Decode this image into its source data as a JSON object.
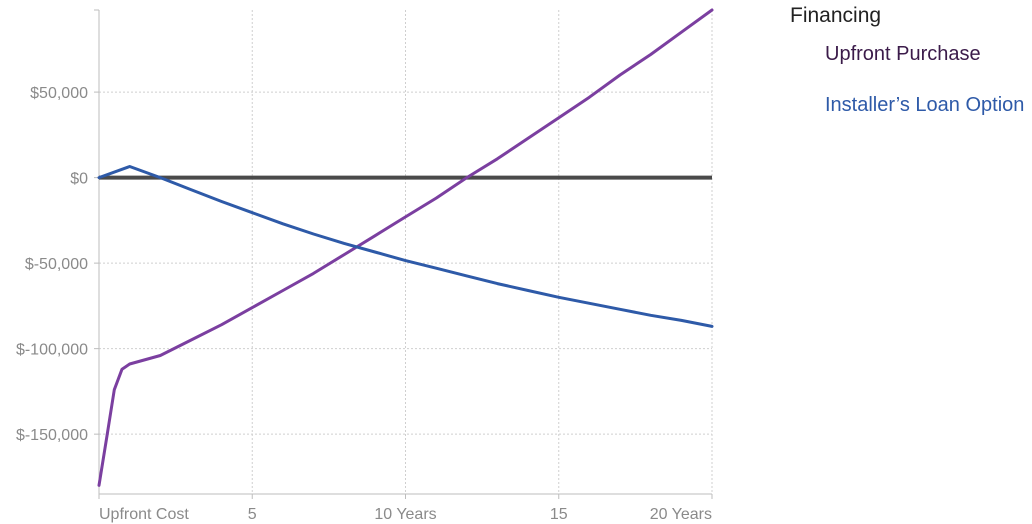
{
  "chart_data": {
    "type": "line",
    "title": "",
    "xlabel": "",
    "ylabel": "",
    "xlim": [
      0,
      20
    ],
    "ylim": [
      -185000,
      98000
    ],
    "x_ticks": [
      {
        "value": 0,
        "label": "Upfront Cost"
      },
      {
        "value": 5,
        "label": "5"
      },
      {
        "value": 10,
        "label": "10 Years"
      },
      {
        "value": 15,
        "label": "15"
      },
      {
        "value": 20,
        "label": "20 Years"
      }
    ],
    "y_ticks": [
      {
        "value": 50000,
        "label": "$50,000"
      },
      {
        "value": 0,
        "label": "$0"
      },
      {
        "value": -50000,
        "label": "$-50,000"
      },
      {
        "value": -100000,
        "label": "$-100,000"
      },
      {
        "value": -150000,
        "label": "$-150,000"
      }
    ],
    "grid": true,
    "zero_line": true,
    "legend_title": "Financing",
    "legend_position": "right",
    "series": [
      {
        "name": "Upfront Purchase",
        "color": "#7b3fa0",
        "x": [
          0,
          0.25,
          0.5,
          0.75,
          1,
          2,
          3,
          4,
          5,
          6,
          7,
          8,
          9,
          10,
          11,
          12,
          13,
          14,
          15,
          16,
          17,
          18,
          19,
          20
        ],
        "y": [
          -180000,
          -152000,
          -124000,
          -112000,
          -109000,
          -104000,
          -95000,
          -86000,
          -76000,
          -66000,
          -56000,
          -45000,
          -34000,
          -23000,
          -12000,
          0,
          11000,
          23000,
          35000,
          47000,
          60000,
          72000,
          85000,
          98000
        ]
      },
      {
        "name": "Installer’s Loan Option",
        "color": "#2e5aa8",
        "x": [
          0,
          1,
          2,
          3,
          4,
          5,
          6,
          7,
          8,
          9,
          10,
          11,
          12,
          13,
          14,
          15,
          16,
          17,
          18,
          19,
          20
        ],
        "y": [
          0,
          6500,
          0,
          -7000,
          -14000,
          -20500,
          -27000,
          -33000,
          -38500,
          -43500,
          -48500,
          -53000,
          -57500,
          -62000,
          -66000,
          -70000,
          -73500,
          -77000,
          -80500,
          -83500,
          -87000
        ]
      }
    ]
  }
}
